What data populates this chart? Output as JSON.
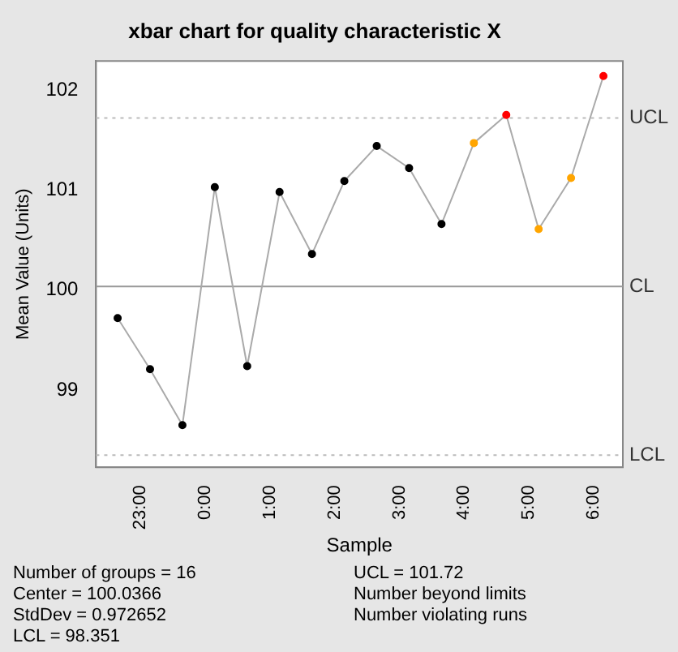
{
  "chart_data": {
    "type": "line",
    "title": "xbar chart for quality characteristic X",
    "xlabel": "Sample",
    "ylabel": "Mean Value (Units)",
    "x": [
      "--01-01T22:39",
      "--01-01T23:09",
      "--01-01T23:39",
      "--01-02T00:09",
      "--01-02T00:39",
      "--01-02T01:09",
      "--01-02T01:39",
      "--01-02T02:09",
      "--01-02T02:39",
      "--01-02T03:09",
      "--01-02T03:39",
      "--01-02T04:09",
      "--01-02T04:39",
      "--01-02T05:09",
      "--01-02T05:39",
      "--01-02T06:09"
    ],
    "series": [
      {
        "color": "#aaaaaa",
        "colors": [
          "#000000",
          "#000000",
          "#000000",
          "#000000",
          "#000000",
          "#000000",
          "#000000",
          "#000000",
          "#000000",
          "#000000",
          "#000000",
          "#ffa500",
          "#ff0000",
          "#ffa500",
          "#ffa500",
          "#ff0000"
        ],
        "values": [
          99.72,
          99.21,
          98.65,
          101.03,
          99.24,
          100.98,
          100.36,
          101.09,
          101.44,
          101.22,
          100.66,
          101.47,
          101.75,
          100.61,
          101.12,
          102.14
        ]
      }
    ],
    "xlim": [
      "--01-01T22:19",
      "--01-02T06:27"
    ],
    "ylim": [
      98.23,
      102.29
    ],
    "xticks": [
      {
        "value": "--01-01T23:00",
        "label": "23:00"
      },
      {
        "value": "--01-02T00:00",
        "label": "0:00"
      },
      {
        "value": "--01-02T01:00",
        "label": "1:00"
      },
      {
        "value": "--01-02T02:00",
        "label": "2:00"
      },
      {
        "value": "--01-02T03:00",
        "label": "3:00"
      },
      {
        "value": "--01-02T04:00",
        "label": "4:00"
      },
      {
        "value": "--01-02T05:00",
        "label": "5:00"
      },
      {
        "value": "--01-02T06:00",
        "label": "6:00"
      }
    ],
    "yticks": [
      99,
      100,
      101,
      102
    ],
    "ref_lines": [
      {
        "axis": "y",
        "value": 101.72,
        "label": "UCL",
        "color": "#bbbbbb",
        "line_style": "dotted"
      },
      {
        "axis": "y",
        "value": 100.0366,
        "label": "CL",
        "color": "#999999",
        "line_style": "solid"
      },
      {
        "axis": "y",
        "value": 98.351,
        "label": "LCL",
        "color": "#bbbbbb",
        "line_style": "dotted"
      }
    ],
    "annotations": [
      "Number of groups = 16",
      "Center = 100.0366",
      "StdDev = 0.972652",
      "LCL = 98.351",
      "UCL = 101.72",
      "Number beyond limits",
      "Number violating runs"
    ],
    "marker": "circle",
    "line_style": "solid",
    "grid": false,
    "legend": false
  }
}
